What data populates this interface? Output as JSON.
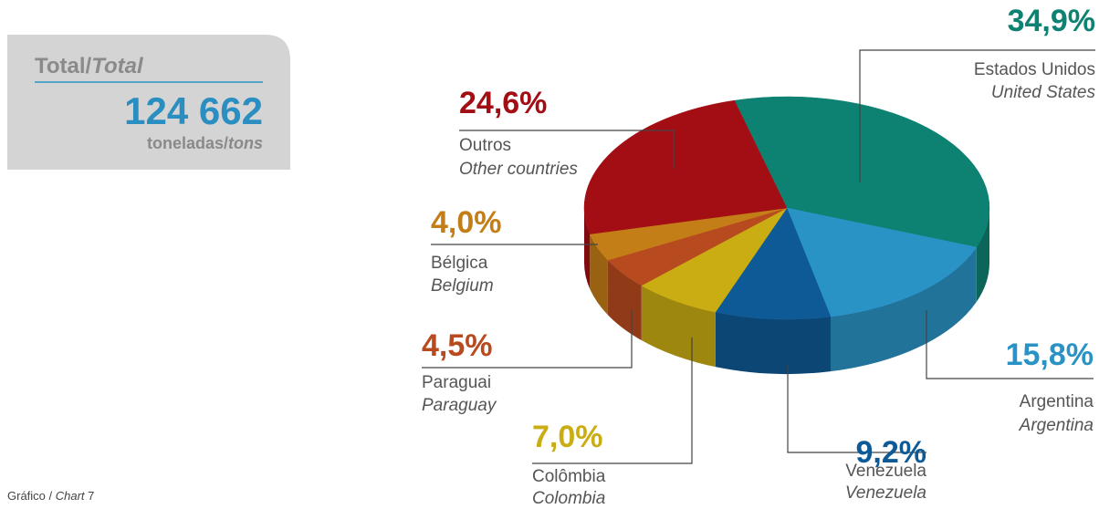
{
  "total": {
    "label": "Total/",
    "label_en": "Total",
    "value": "124 662",
    "unit": "toneladas/",
    "unit_en": "tons"
  },
  "footer": {
    "label": "Gráfico / ",
    "label_en": "Chart",
    "number": " 7"
  },
  "chart_data": {
    "type": "pie",
    "categories": [
      "Estados Unidos",
      "Argentina",
      "Venezuela",
      "Colômbia",
      "Paraguai",
      "Bélgica",
      "Outros"
    ],
    "categories_en": [
      "United States",
      "Argentina",
      "Venezuela",
      "Colombia",
      "Paraguay",
      "Belgium",
      "Other countries"
    ],
    "values": [
      34.9,
      15.8,
      9.2,
      7.0,
      4.5,
      4.0,
      24.6
    ],
    "value_labels": [
      "34,9%",
      "15,8%",
      "9,2%",
      "7,0%",
      "4,5%",
      "4,0%",
      "24,6%"
    ],
    "colors": [
      "#0e8272",
      "#2a93c5",
      "#0e5a96",
      "#c9ad12",
      "#b84a1f",
      "#c47e17",
      "#a30e14"
    ]
  }
}
